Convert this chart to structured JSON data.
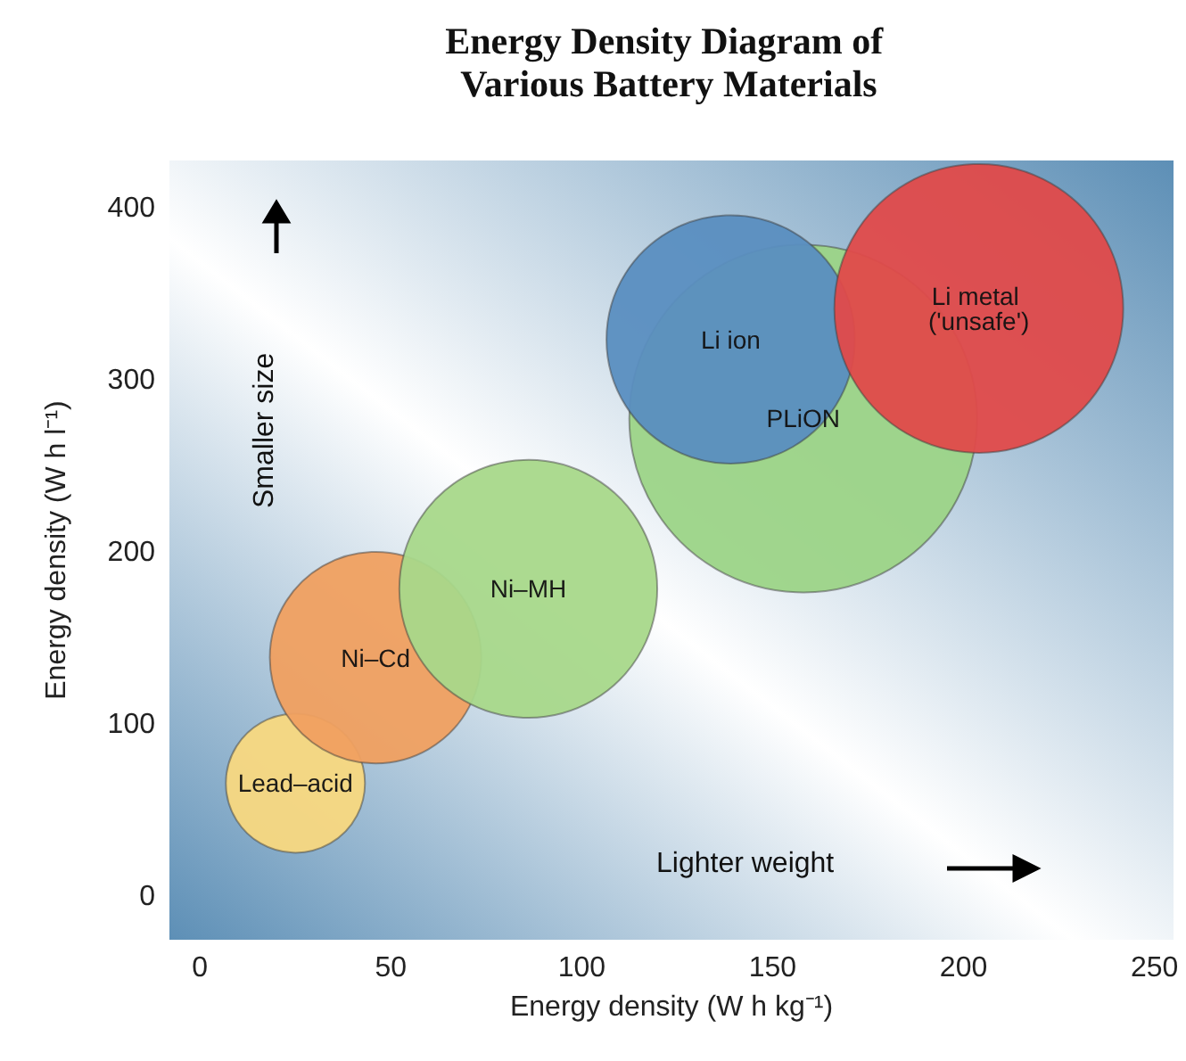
{
  "chart_data": {
    "type": "bubble",
    "title": "Energy Density Diagram of Various Battery Materials",
    "xlabel": "Energy density (W h kg⁻¹)",
    "ylabel": "Energy density (W h l⁻¹)",
    "xlim": [
      -8,
      255
    ],
    "ylim": [
      -25,
      428
    ],
    "xticks": [
      0,
      50,
      100,
      150,
      200,
      250
    ],
    "yticks": [
      0,
      100,
      200,
      300,
      400
    ],
    "series": [
      {
        "name": "Lead–acid",
        "color": "#f8d880",
        "x": [
          25
        ],
        "values": [
          66
        ],
        "sizes": [
          0.16
        ]
      },
      {
        "name": "Ni–Cd",
        "color": "#f0a060",
        "x": [
          46
        ],
        "values": [
          139
        ],
        "sizes": [
          0.37
        ]
      },
      {
        "name": "Ni–MH",
        "color": "#a8d88a",
        "x": [
          86
        ],
        "values": [
          179
        ],
        "sizes": [
          0.55
        ]
      },
      {
        "name": "PLiON",
        "color": "#9cd487",
        "x": [
          158
        ],
        "values": [
          278
        ],
        "sizes": [
          1
        ]
      },
      {
        "name": "Li ion",
        "color": "#5a8ec0",
        "x": [
          139
        ],
        "values": [
          324
        ],
        "sizes": [
          0.51
        ]
      },
      {
        "name": "Li metal ('unsafe')",
        "color": "#e04a4a",
        "x": [
          204
        ],
        "values": [
          342
        ],
        "sizes": [
          0.69
        ]
      }
    ],
    "annotations": [
      "Smaller size",
      "Lighter weight"
    ],
    "legend": false,
    "grid": false
  }
}
